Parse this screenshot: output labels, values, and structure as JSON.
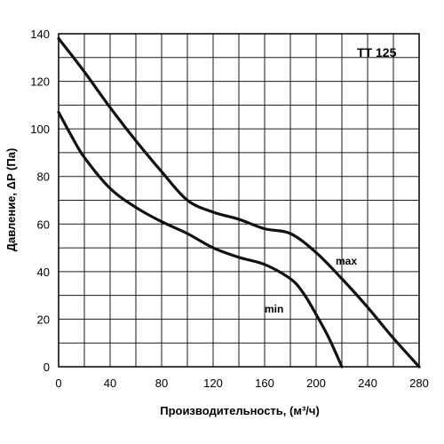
{
  "chart_data": {
    "type": "line",
    "title": "TT 125",
    "xlabel": "Производительность, (м³/ч)",
    "ylabel": "Давление, ΔP (Па)",
    "xlim": [
      0,
      280
    ],
    "ylim": [
      0,
      140
    ],
    "x_ticks": [
      "0",
      "40",
      "80",
      "120",
      "160",
      "200",
      "240",
      "280"
    ],
    "y_ticks": [
      "0",
      "20",
      "40",
      "60",
      "80",
      "100",
      "120",
      "140"
    ],
    "grid": true,
    "series": [
      {
        "name": "max",
        "x": [
          0,
          20,
          40,
          60,
          80,
          100,
          120,
          140,
          160,
          180,
          200,
          220,
          240,
          260,
          280
        ],
        "y": [
          138,
          124,
          109,
          95,
          82,
          70,
          65,
          62,
          58,
          56,
          48,
          37,
          25,
          12,
          0
        ]
      },
      {
        "name": "min",
        "x": [
          0,
          10,
          20,
          40,
          60,
          80,
          100,
          120,
          140,
          160,
          180,
          190,
          200,
          210,
          220
        ],
        "y": [
          107,
          97,
          88,
          75,
          67,
          61,
          56,
          50,
          46,
          43,
          37,
          31,
          22,
          12,
          0
        ]
      }
    ]
  }
}
